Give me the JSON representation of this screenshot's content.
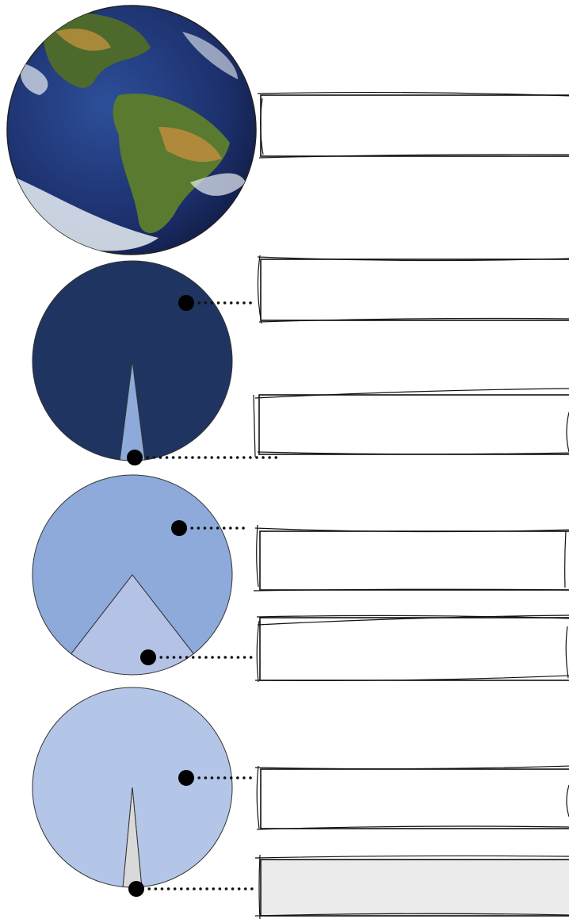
{
  "chart_data": [
    {
      "type": "pie",
      "values": [
        96,
        4
      ],
      "colors": [
        "#1f3461",
        "#8eaadb"
      ]
    },
    {
      "type": "pie",
      "values": [
        79,
        21
      ],
      "colors": [
        "#8eaadb",
        "#b4c2e6"
      ]
    },
    {
      "type": "pie",
      "values": [
        97,
        3
      ],
      "colors": [
        "#b4c6e7",
        "#d9d9d9"
      ]
    }
  ]
}
